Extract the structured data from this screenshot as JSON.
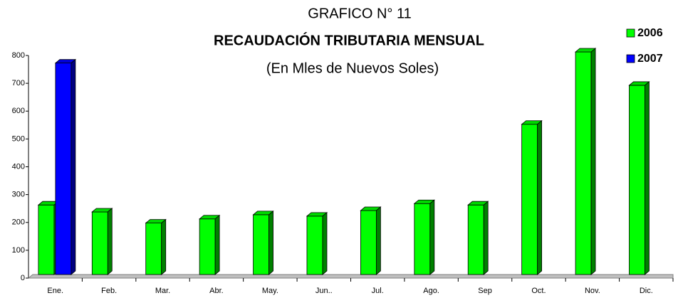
{
  "chart_data": {
    "type": "bar3d",
    "title": "GRAFICO N° 11",
    "subtitle": "RECAUDACIÓN TRIBUTARIA MENSUAL",
    "unit_note": "(En Mles de Nuevos Soles)",
    "categories": [
      "Ene.",
      "Feb.",
      "Mar.",
      "Abr.",
      "May.",
      "Jun..",
      "Jul.",
      "Ago.",
      "Sep",
      "Oct.",
      "Nov.",
      "Dic."
    ],
    "series": [
      {
        "name": "2006",
        "color": "#00ff00",
        "values": [
          250,
          225,
          185,
          200,
          215,
          210,
          230,
          255,
          250,
          540,
          800,
          680
        ]
      },
      {
        "name": "2007",
        "color": "#0000ff",
        "values": [
          760,
          null,
          null,
          null,
          null,
          null,
          null,
          null,
          null,
          null,
          null,
          null
        ]
      }
    ],
    "ylim": [
      0,
      800
    ],
    "yticks": [
      0,
      100,
      200,
      300,
      400,
      500,
      600,
      700,
      800
    ],
    "legend": "top-right"
  }
}
